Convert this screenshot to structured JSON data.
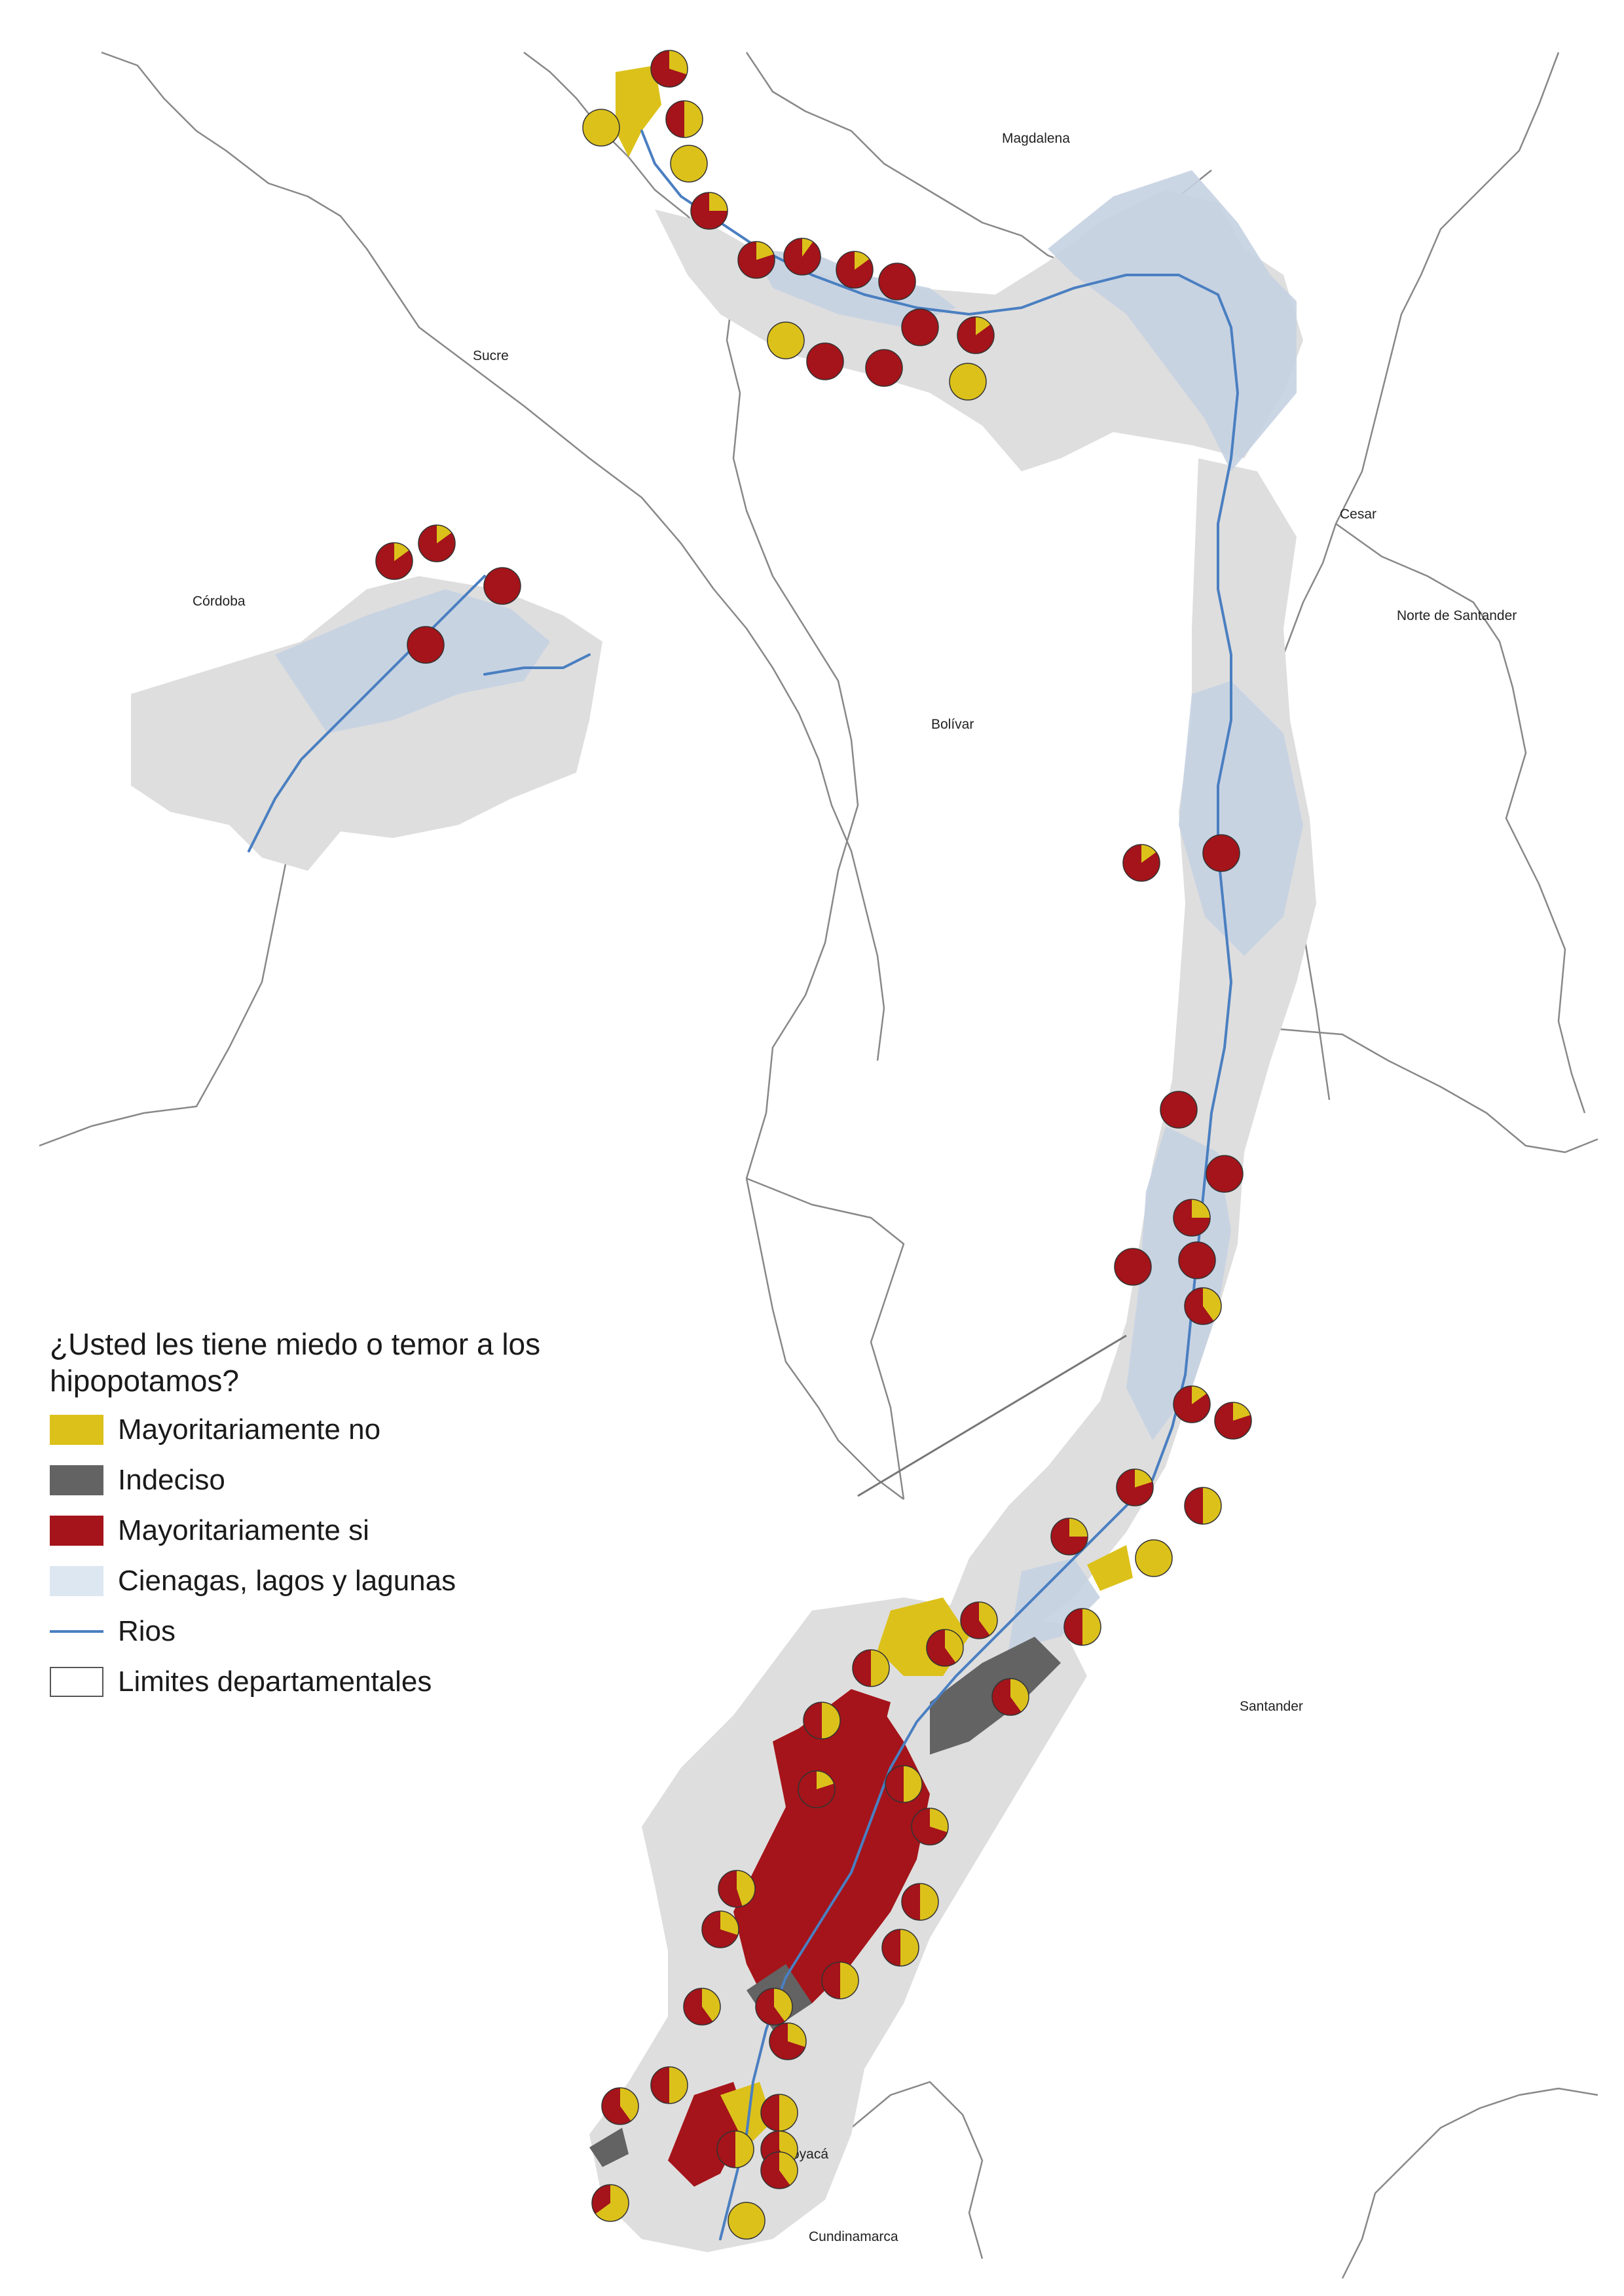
{
  "colors": {
    "no": "#dcc11a",
    "undecided": "#636363",
    "yes": "#a4141a",
    "wetlands": "#dde7f2",
    "wetlands_area": "#c5d2e2",
    "land_gray": "#dedede",
    "rivers": "#4a7fc1",
    "boundaries": "#888888"
  },
  "departments": [
    {
      "name": "Magdalena"
    },
    {
      "name": "Sucre"
    },
    {
      "name": "Cesar"
    },
    {
      "name": "Córdoba"
    },
    {
      "name": "Norte de Santander"
    },
    {
      "name": "Bolívar"
    },
    {
      "name": "Santander"
    },
    {
      "name": "Boyacá"
    },
    {
      "name": "Cundinamarca"
    }
  ],
  "legend": {
    "title": "¿Usted les tiene miedo o temor a los hipopotamos?",
    "items": [
      {
        "label": "Mayoritariamente no",
        "type": "fill",
        "color": "#dcc11a"
      },
      {
        "label": "Indeciso",
        "type": "fill",
        "color": "#636363"
      },
      {
        "label": "Mayoritariamente si",
        "type": "fill",
        "color": "#a4141a"
      },
      {
        "label": "Cienagas, lagos y lagunas",
        "type": "fill",
        "color": "#dde7f2"
      },
      {
        "label": "Rios",
        "type": "line",
        "color": "#4a7fc1"
      },
      {
        "label": "Limites departamentales",
        "type": "outline",
        "color": "#ffffff"
      }
    ]
  },
  "pie_markers": [
    {
      "yes_share": 0.7
    },
    {
      "yes_share": 0.5
    },
    {
      "yes_share": 0.0
    },
    {
      "yes_share": 0.0
    },
    {
      "yes_share": 0.75
    },
    {
      "yes_share": 0.8
    },
    {
      "yes_share": 0.9
    },
    {
      "yes_share": 0.85
    },
    {
      "yes_share": 1.0
    },
    {
      "yes_share": 1.0
    },
    {
      "yes_share": 0.85
    },
    {
      "yes_share": 0.0
    },
    {
      "yes_share": 1.0
    },
    {
      "yes_share": 1.0
    },
    {
      "yes_share": 0.0
    },
    {
      "yes_share": 0.85
    },
    {
      "yes_share": 0.85
    },
    {
      "yes_share": 1.0
    },
    {
      "yes_share": 1.0
    },
    {
      "yes_share": 0.85
    },
    {
      "yes_share": 1.0
    },
    {
      "yes_share": 1.0
    },
    {
      "yes_share": 1.0
    },
    {
      "yes_share": 0.75
    },
    {
      "yes_share": 1.0
    },
    {
      "yes_share": 1.0
    },
    {
      "yes_share": 0.6
    },
    {
      "yes_share": 0.85
    },
    {
      "yes_share": 0.8
    },
    {
      "yes_share": 0.8
    },
    {
      "yes_share": 0.5
    },
    {
      "yes_share": 0.75
    },
    {
      "yes_share": 0.0
    },
    {
      "yes_share": 0.5
    },
    {
      "yes_share": 0.6
    },
    {
      "yes_share": 0.6
    },
    {
      "yes_share": 0.5
    },
    {
      "yes_share": 0.6
    },
    {
      "yes_share": 0.5
    },
    {
      "yes_share": 0.5
    },
    {
      "yes_share": 0.8
    },
    {
      "yes_share": 0.7
    },
    {
      "yes_share": 0.5
    },
    {
      "yes_share": 0.55
    },
    {
      "yes_share": 0.7
    },
    {
      "yes_share": 0.5
    },
    {
      "yes_share": 0.5
    },
    {
      "yes_share": 0.6
    },
    {
      "yes_share": 0.6
    },
    {
      "yes_share": 0.7
    },
    {
      "yes_share": 0.5
    },
    {
      "yes_share": 0.6
    },
    {
      "yes_share": 0.5
    },
    {
      "yes_share": 0.6
    },
    {
      "yes_share": 0.5
    },
    {
      "yes_share": 0.6
    },
    {
      "yes_share": 0.35
    },
    {
      "yes_share": 0.0
    }
  ]
}
